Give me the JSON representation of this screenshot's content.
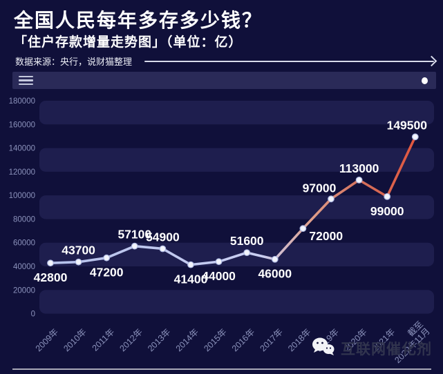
{
  "header": {
    "title": "全国人民每年多存多少钱？",
    "subtitle": "「住户存款增量走势图」（单位：亿）",
    "source": "数据来源：央行，说财猫整理"
  },
  "toolbar": {
    "menu_icon": "hamburger-icon",
    "handle_icon": "dot-handle"
  },
  "chart_data": {
    "type": "line",
    "title": "住户存款增量走势图",
    "unit": "亿",
    "categories": [
      "2009年",
      "2010年",
      "2011年",
      "2012年",
      "2013年",
      "2014年",
      "2015年",
      "2016年",
      "2017年",
      "2018年",
      "2019年",
      "2020年",
      "2021年",
      "截至2022年11月"
    ],
    "values": [
      42800,
      43700,
      47200,
      57100,
      54900,
      41400,
      44000,
      51600,
      46000,
      72000,
      97000,
      113000,
      99000,
      149500
    ],
    "ylim": [
      0,
      180000
    ],
    "ytick_interval": 20000,
    "grid": "alternating-bands",
    "legend": "none",
    "label_positions": [
      "below",
      "above",
      "below",
      "above",
      "above",
      "below",
      "below",
      "above",
      "below",
      "right",
      "above-left",
      "above",
      "below",
      "above-l"
    ],
    "last_category_lines": [
      "截至",
      "2022年11月"
    ]
  },
  "watermark": {
    "icon": "wechat-icon",
    "text": "互联网催化剂"
  },
  "colors": {
    "background": "#10103a",
    "band": "#1e1e4e",
    "toolbar_bar": "#2a2a58",
    "axis_label": "#8b92bb",
    "data_label": "#ffffff",
    "line_gradient": [
      "#b5c1eb",
      "#c9cef2",
      "#e09d88",
      "#d3705c",
      "#e1573f"
    ],
    "gradient_offsets": [
      0,
      0.58,
      0.72,
      0.85,
      1
    ],
    "marker_fill": "#f2f4fc",
    "marker_stroke": "#aeb9e2"
  }
}
